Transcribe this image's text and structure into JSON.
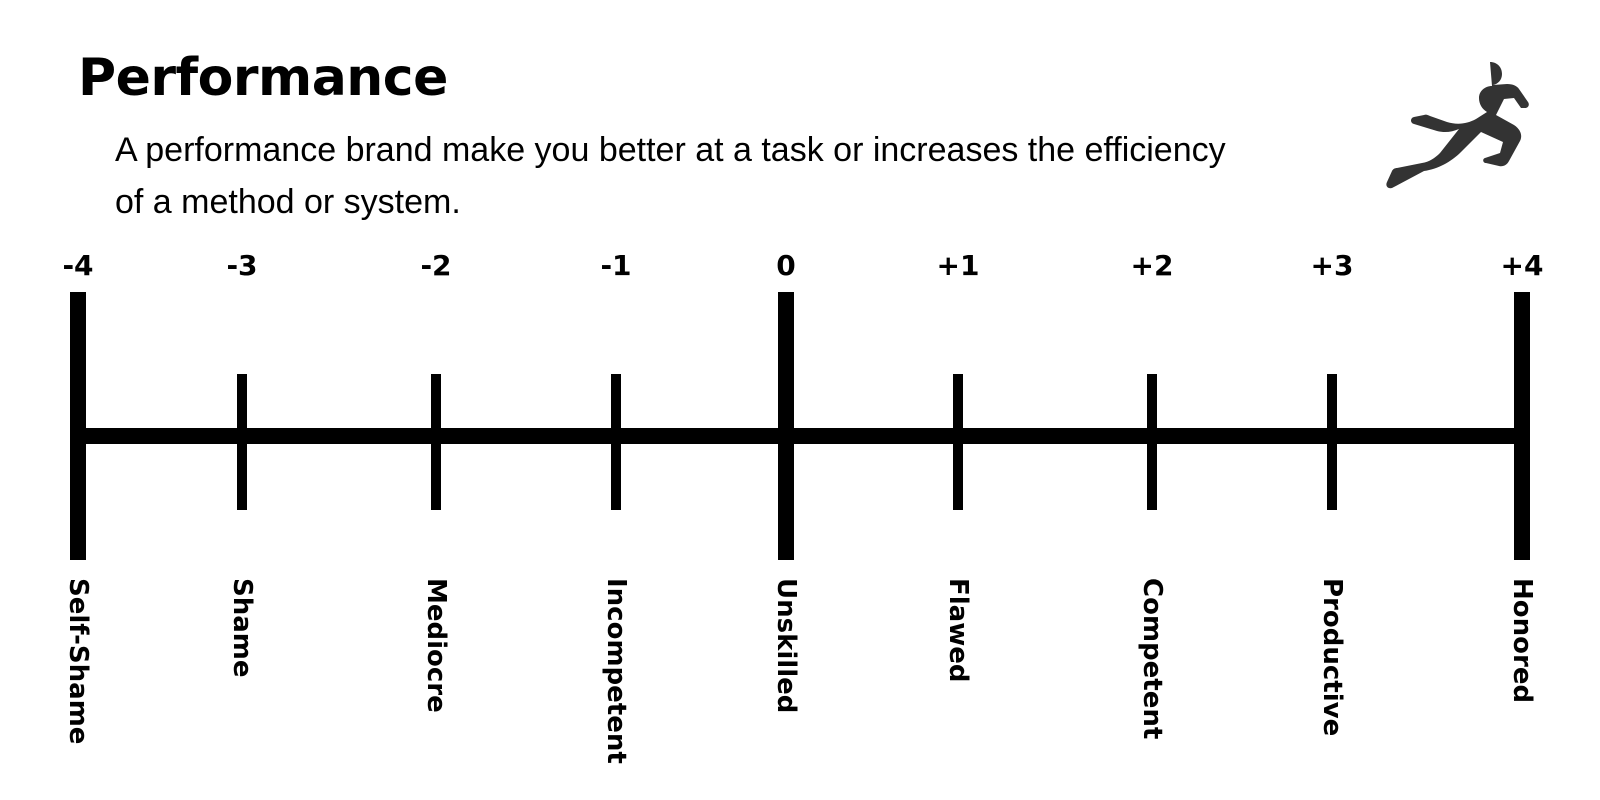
{
  "title": "Performance",
  "description": "A performance brand make you better at a task or increases the efficiency of a method or system.",
  "runner_icon": "runner-icon",
  "scale": [
    {
      "value": "-4",
      "label": "Self-Shame",
      "major": true
    },
    {
      "value": "-3",
      "label": "Shame",
      "major": false
    },
    {
      "value": "-2",
      "label": "Mediocre",
      "major": false
    },
    {
      "value": "-1",
      "label": "Incompetent",
      "major": false
    },
    {
      "value": "0",
      "label": "Unskilled",
      "major": true
    },
    {
      "value": "+1",
      "label": "Flawed",
      "major": false
    },
    {
      "value": "+2",
      "label": "Competent",
      "major": false
    },
    {
      "value": "+3",
      "label": "Productive",
      "major": false
    },
    {
      "value": "+4",
      "label": "Honored",
      "major": true
    }
  ],
  "colors": {
    "ink": "#000000",
    "runner": "#333333",
    "background": "#ffffff"
  }
}
